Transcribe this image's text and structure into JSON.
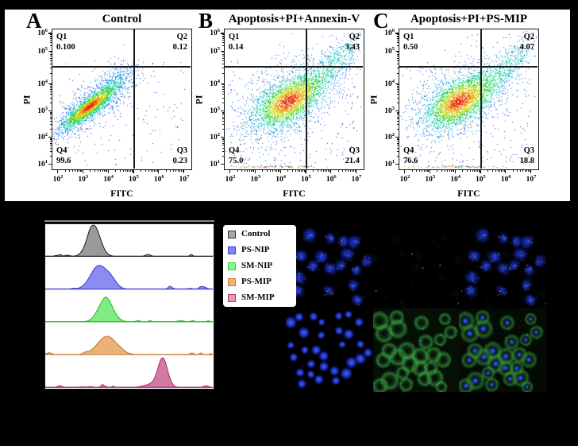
{
  "figure": {
    "background": "#000000",
    "panel_box_background": "#ffffff"
  },
  "flow_section": {
    "axis": {
      "tick_base": "10",
      "x_label": "FITC",
      "y_label": "PI",
      "x_exponents": [
        "2",
        "3",
        "4",
        "5",
        "6",
        "7"
      ],
      "y_exponents": [
        "6",
        "5",
        "4",
        "3",
        "2",
        "1"
      ]
    },
    "panels": [
      {
        "letter": "A",
        "title": "Control",
        "quadrants": {
          "q1": {
            "name": "Q1",
            "value": "0.100"
          },
          "q2": {
            "name": "Q2",
            "value": "0.12"
          },
          "q3": {
            "name": "Q3",
            "value": "0.23"
          },
          "q4": {
            "name": "Q4",
            "value": "99.6"
          }
        }
      },
      {
        "letter": "B",
        "title": "Apoptosis+PI+Annexin-V",
        "quadrants": {
          "q1": {
            "name": "Q1",
            "value": "0.14"
          },
          "q2": {
            "name": "Q2",
            "value": "3.43"
          },
          "q3": {
            "name": "Q3",
            "value": "21.4"
          },
          "q4": {
            "name": "Q4",
            "value": "75.0"
          }
        }
      },
      {
        "letter": "C",
        "title": "Apoptosis+PI+PS-MIP",
        "quadrants": {
          "q1": {
            "name": "Q1",
            "value": "0.50"
          },
          "q2": {
            "name": "Q2",
            "value": "4.07"
          },
          "q3": {
            "name": "Q3",
            "value": "18.8"
          },
          "q4": {
            "name": "Q4",
            "value": "76.6"
          }
        }
      }
    ]
  },
  "histogram_section": {
    "legend": [
      {
        "label": "Control",
        "fill": "#a8a8a8",
        "border": "#333333"
      },
      {
        "label": "PS-NIP",
        "fill": "#8585f2",
        "border": "#4040cc"
      },
      {
        "label": "SM-NIP",
        "fill": "#8df28d",
        "border": "#2ecc2e"
      },
      {
        "label": "PS-MIP",
        "fill": "#f0b27a",
        "border": "#c77a28"
      },
      {
        "label": "SM-MIP",
        "fill": "#e89ab8",
        "border": "#b0306a"
      }
    ]
  },
  "microscopy_section": {
    "tiles": [
      {
        "row": 1,
        "col": 1,
        "channel": "blue-nuclei-dim"
      },
      {
        "row": 1,
        "col": 2,
        "channel": "green-faint-speckle"
      },
      {
        "row": 1,
        "col": 3,
        "channel": "merge-blue-faint-green"
      },
      {
        "row": 2,
        "col": 1,
        "channel": "blue-nuclei-bright"
      },
      {
        "row": 2,
        "col": 2,
        "channel": "green-cytoplasm-bright"
      },
      {
        "row": 2,
        "col": 3,
        "channel": "merge-green-blue"
      }
    ]
  },
  "chart_data": [
    {
      "type": "scatter",
      "panel": "A",
      "title": "Control",
      "xlabel": "FITC",
      "ylabel": "PI",
      "xscale": "log",
      "yscale": "log",
      "xlim": [
        100,
        10000000
      ],
      "ylim": [
        10,
        1000000
      ],
      "gate_x": 100000,
      "gate_y": 40000,
      "quadrant_percents": {
        "Q1": 0.1,
        "Q2": 0.12,
        "Q3": 0.23,
        "Q4": 99.6
      },
      "population_center": [
        1600,
        1800
      ],
      "clusters": [
        {
          "cx": 0.27,
          "cy": 0.55,
          "angle": -38,
          "sx": 22,
          "sy": 5,
          "n": 2400
        },
        {
          "cx": 0.28,
          "cy": 0.54,
          "angle": -38,
          "sx": 30,
          "sy": 12,
          "n": 750
        },
        {
          "cx": 0.47,
          "cy": 0.34,
          "angle": -40,
          "sx": 16,
          "sy": 8,
          "n": 220
        },
        {
          "uniform": true,
          "n": 140
        }
      ],
      "bottom_strip_n": 0
    },
    {
      "type": "scatter",
      "panel": "B",
      "title": "Apoptosis+PI+Annexin-V",
      "xlabel": "FITC",
      "ylabel": "PI",
      "xscale": "log",
      "yscale": "log",
      "xlim": [
        100,
        10000000
      ],
      "ylim": [
        10,
        1000000
      ],
      "gate_x": 100000,
      "gate_y": 40000,
      "quadrant_percents": {
        "Q1": 0.14,
        "Q2": 3.43,
        "Q3": 21.4,
        "Q4": 75.0
      },
      "population_center": [
        21000,
        2000
      ],
      "clusters": [
        {
          "cx": 0.45,
          "cy": 0.52,
          "angle": -33,
          "sx": 22,
          "sy": 12,
          "n": 2200
        },
        {
          "cx": 0.46,
          "cy": 0.5,
          "angle": -35,
          "sx": 42,
          "sy": 22,
          "n": 1100
        },
        {
          "cx": 0.67,
          "cy": 0.37,
          "angle": -42,
          "sx": 30,
          "sy": 11,
          "n": 650
        },
        {
          "cx": 0.85,
          "cy": 0.17,
          "angle": -40,
          "sx": 18,
          "sy": 8,
          "n": 200
        },
        {
          "uniform": true,
          "n": 260
        }
      ],
      "bottom_strip_n": 90
    },
    {
      "type": "scatter",
      "panel": "C",
      "title": "Apoptosis+PI+PS-MIP",
      "xlabel": "FITC",
      "ylabel": "PI",
      "xscale": "log",
      "yscale": "log",
      "xlim": [
        100,
        10000000
      ],
      "ylim": [
        10,
        1000000
      ],
      "gate_x": 100000,
      "gate_y": 40000,
      "quadrant_percents": {
        "Q1": 0.5,
        "Q2": 4.07,
        "Q3": 18.8,
        "Q4": 76.6
      },
      "population_center": [
        14000,
        2000
      ],
      "clusters": [
        {
          "cx": 0.42,
          "cy": 0.52,
          "angle": -33,
          "sx": 22,
          "sy": 12,
          "n": 2200
        },
        {
          "cx": 0.43,
          "cy": 0.5,
          "angle": -35,
          "sx": 40,
          "sy": 21,
          "n": 1050
        },
        {
          "cx": 0.65,
          "cy": 0.39,
          "angle": -42,
          "sx": 28,
          "sy": 11,
          "n": 600
        },
        {
          "cx": 0.84,
          "cy": 0.19,
          "angle": -40,
          "sx": 18,
          "sy": 8,
          "n": 210
        },
        {
          "uniform": true,
          "n": 260
        }
      ],
      "bottom_strip_n": 80
    },
    {
      "type": "area",
      "title": "",
      "xlabel": "",
      "ylabel": "",
      "legend_position": "upper-right-outside",
      "band_height": 41.2,
      "axis_width": 211,
      "series": [
        {
          "name": "Control",
          "fill": "#8c8c8c",
          "stroke": "#1a1a1a",
          "peak_x": 61,
          "sigma": 8,
          "height": 39,
          "shoulder": null
        },
        {
          "name": "PS-NIP",
          "fill": "#7b7bf0",
          "stroke": "#3a3ad0",
          "peak_x": 67,
          "sigma": 10,
          "height": 29,
          "shoulder": {
            "dx": 16,
            "h": 10,
            "sigma": 7
          }
        },
        {
          "name": "SM-NIP",
          "fill": "#72e872",
          "stroke": "#22b822",
          "peak_x": 76,
          "sigma": 9,
          "height": 29,
          "shoulder": null
        },
        {
          "name": "PS-MIP",
          "fill": "#e8a765",
          "stroke": "#c07020",
          "peak_x": 78,
          "sigma": 12,
          "height": 23,
          "shoulder": null
        },
        {
          "name": "SM-MIP",
          "fill": "#cc6695",
          "stroke": "#a52d70",
          "peak_x": 148,
          "sigma": 6,
          "height": 36,
          "shoulder": {
            "dx": -14,
            "h": 4,
            "sigma": 9
          }
        }
      ]
    }
  ]
}
